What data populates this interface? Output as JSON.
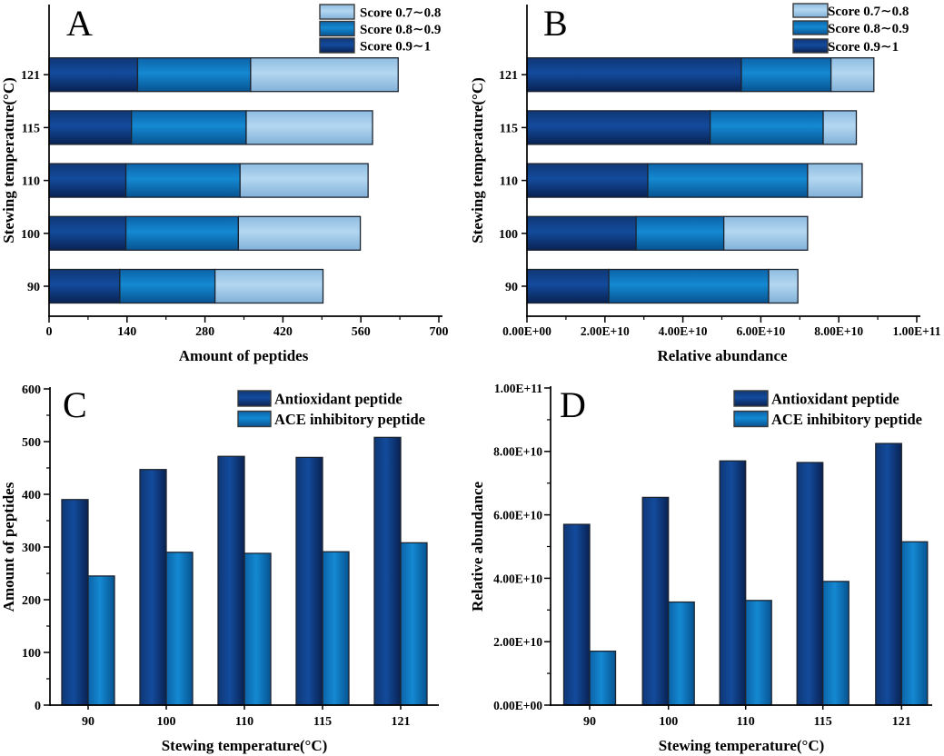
{
  "figure": {
    "background": "#ffffff",
    "description_labels": [
      "A",
      "B",
      "C",
      "D"
    ]
  },
  "palette": {
    "dark_navy_stops": [
      "#0f3776",
      "#134b9c",
      "#092253"
    ],
    "medium_blue_stops": [
      "#0c63a8",
      "#1489d2",
      "#075391"
    ],
    "light_blue_stops": [
      "#8fbce0",
      "#b3d7f1",
      "#82b1d8"
    ],
    "bar_outline": "#1c2430",
    "axis": "#000000",
    "text": "#000000"
  },
  "chart_data": [
    {
      "panel_label": "A",
      "type": "bar",
      "variant": "stacked-horizontal",
      "xlabel": "Amount of peptides",
      "ylabel": "Stewing temperature(°C)",
      "categories": [
        "90",
        "100",
        "110",
        "115",
        "121"
      ],
      "series": [
        {
          "name": "Score 0.9∼1",
          "color_key": "dark",
          "values": [
            127,
            138,
            138,
            148,
            159
          ]
        },
        {
          "name": "Score 0.8∼0.9",
          "color_key": "mid",
          "values": [
            171,
            202,
            205,
            206,
            203
          ]
        },
        {
          "name": "Score 0.7∼0.8",
          "color_key": "light",
          "values": [
            194,
            219,
            230,
            227,
            265
          ]
        }
      ],
      "totals": [
        492,
        559,
        573,
        581,
        627
      ],
      "xlim": [
        0,
        700
      ],
      "xticks": [
        0,
        140,
        280,
        420,
        560,
        700
      ],
      "xtick_labels": [
        "0",
        "140",
        "280",
        "420",
        "560",
        "700"
      ],
      "legend": {
        "position": "top-right",
        "items": [
          "Score 0.7∼0.8",
          "Score 0.8∼0.9",
          "Score 0.9∼1"
        ]
      }
    },
    {
      "panel_label": "B",
      "type": "bar",
      "variant": "stacked-horizontal",
      "xlabel": "Relative abundance",
      "ylabel": "Stewing temperature(°C)",
      "categories": [
        "90",
        "100",
        "110",
        "115",
        "121"
      ],
      "series": [
        {
          "name": "Score 0.9∼1",
          "color_key": "dark",
          "values": [
            21000000000.0,
            28000000000.0,
            31000000000.0,
            47000000000.0,
            55000000000.0
          ]
        },
        {
          "name": "Score 0.8∼0.9",
          "color_key": "mid",
          "values": [
            41000000000.0,
            22500000000.0,
            41000000000.0,
            29000000000.0,
            23000000000.0
          ]
        },
        {
          "name": "Score 0.7∼0.8",
          "color_key": "light",
          "values": [
            7500000000.0,
            21500000000.0,
            14000000000.0,
            8500000000.0,
            11000000000.0
          ]
        }
      ],
      "totals": [
        69500000000.0,
        72000000000.0,
        86000000000.0,
        84500000000.0,
        89000000000.0
      ],
      "xlim": [
        0,
        100000000000.0
      ],
      "xticks": [
        0,
        20000000000.0,
        40000000000.0,
        60000000000.0,
        80000000000.0,
        100000000000.0
      ],
      "xtick_labels": [
        "0.00E+00",
        "2.00E+10",
        "4.00E+10",
        "6.00E+10",
        "8.00E+10",
        "1.00E+11"
      ],
      "legend": {
        "position": "top-right",
        "items": [
          "Score 0.7∼0.8",
          "Score 0.8∼0.9",
          "Score 0.9∼1"
        ]
      }
    },
    {
      "panel_label": "C",
      "type": "bar",
      "variant": "grouped-vertical",
      "xlabel": "Stewing temperature(°C)",
      "ylabel": "Amount of peptides",
      "categories": [
        "90",
        "100",
        "110",
        "115",
        "121"
      ],
      "series": [
        {
          "name": "Antioxidant peptide",
          "color_key": "dark",
          "values": [
            390,
            447,
            472,
            470,
            508
          ]
        },
        {
          "name": "ACE inhibitory peptide",
          "color_key": "mid",
          "values": [
            245,
            290,
            288,
            291,
            308
          ]
        }
      ],
      "ylim": [
        0,
        600
      ],
      "yticks": [
        0,
        100,
        200,
        300,
        400,
        500,
        600
      ],
      "ytick_labels": [
        "0",
        "100",
        "200",
        "300",
        "400",
        "500",
        "600"
      ],
      "legend": {
        "position": "top-right",
        "items": [
          "Antioxidant peptide",
          "ACE inhibitory peptide"
        ]
      }
    },
    {
      "panel_label": "D",
      "type": "bar",
      "variant": "grouped-vertical",
      "xlabel": "Stewing temperature(°C)",
      "ylabel": "Relative abundance",
      "categories": [
        "90",
        "100",
        "110",
        "115",
        "121"
      ],
      "series": [
        {
          "name": "Antioxidant peptide",
          "color_key": "dark",
          "values": [
            57000000000.0,
            65500000000.0,
            77000000000.0,
            76500000000.0,
            82500000000.0
          ]
        },
        {
          "name": "ACE inhibitory peptide",
          "color_key": "mid",
          "values": [
            17000000000.0,
            32500000000.0,
            33000000000.0,
            39000000000.0,
            51500000000.0
          ]
        }
      ],
      "ylim": [
        0,
        100000000000.0
      ],
      "yticks": [
        0,
        20000000000.0,
        40000000000.0,
        60000000000.0,
        80000000000.0,
        100000000000.0
      ],
      "ytick_labels": [
        "0.00E+00",
        "2.00E+10",
        "4.00E+10",
        "6.00E+10",
        "8.00E+10",
        "1.00E+11"
      ],
      "legend": {
        "position": "top-right",
        "items": [
          "Antioxidant peptide",
          "ACE inhibitory peptide"
        ]
      }
    }
  ]
}
